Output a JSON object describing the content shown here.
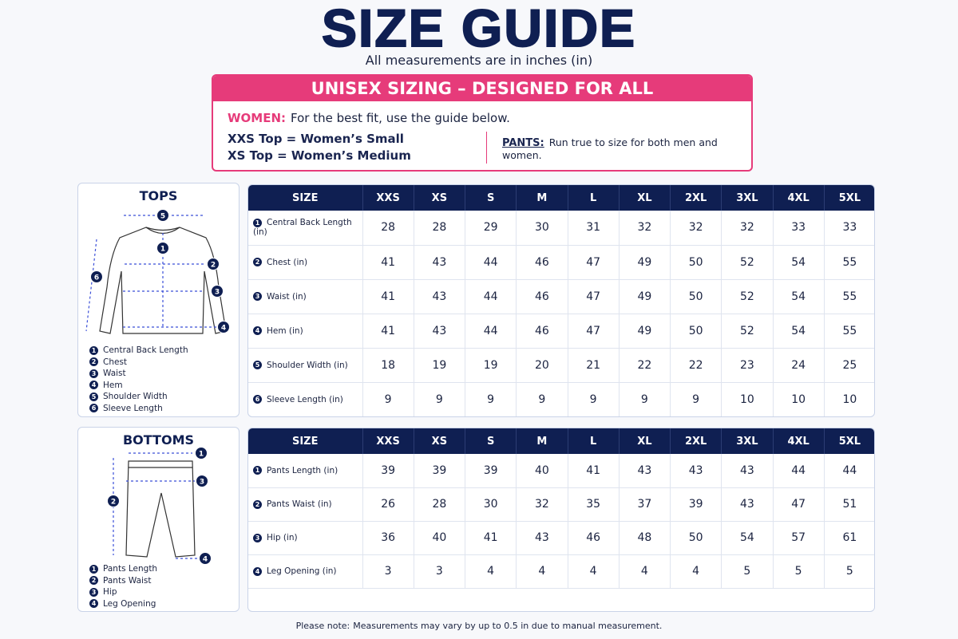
{
  "header": {
    "title": "SIZE GUIDE",
    "subtitle": "All measurements are in inches (in)"
  },
  "banner": {
    "title": "UNISEX SIZING – DESIGNED FOR ALL",
    "women_label": "WOMEN:",
    "women_text": "For the best fit, use the guide below.",
    "lines": [
      "XXS Top = Women’s Small",
      "XS Top = Women’s Medium"
    ],
    "pants_label": "PANTS:",
    "pants_text": "Run true to size for both men and women."
  },
  "tops": {
    "title": "TOPS",
    "legend": [
      {
        "num": "1",
        "label": "Central Back Length"
      },
      {
        "num": "2",
        "label": "Chest"
      },
      {
        "num": "3",
        "label": "Waist"
      },
      {
        "num": "4",
        "label": "Hem"
      },
      {
        "num": "5",
        "label": "Shoulder Width"
      },
      {
        "num": "6",
        "label": "Sleeve Length"
      }
    ],
    "table": {
      "header": [
        "SIZE",
        "XXS",
        "XS",
        "S",
        "M",
        "L",
        "XL",
        "2XL",
        "3XL",
        "4XL",
        "5XL"
      ],
      "rows": [
        {
          "num": "1",
          "label": "Central Back Length (in)",
          "values": [
            28,
            28,
            29,
            30,
            31,
            32,
            32,
            32,
            33,
            33
          ]
        },
        {
          "num": "2",
          "label": "Chest (in)",
          "values": [
            41,
            43,
            44,
            46,
            47,
            49,
            50,
            52,
            54,
            55
          ]
        },
        {
          "num": "3",
          "label": "Waist (in)",
          "values": [
            41,
            43,
            44,
            46,
            47,
            49,
            50,
            52,
            54,
            55
          ]
        },
        {
          "num": "4",
          "label": "Hem (in)",
          "values": [
            41,
            43,
            44,
            46,
            47,
            49,
            50,
            52,
            54,
            55
          ]
        },
        {
          "num": "5",
          "label": "Shoulder Width (in)",
          "values": [
            18,
            19,
            19,
            20,
            21,
            22,
            22,
            23,
            24,
            25
          ]
        },
        {
          "num": "6",
          "label": "Sleeve Length (in)",
          "values": [
            9,
            9,
            9,
            9,
            9,
            9,
            9,
            10,
            10,
            10
          ]
        }
      ]
    }
  },
  "bottoms": {
    "title": "BOTTOMS",
    "legend": [
      {
        "num": "1",
        "label": "Pants Length"
      },
      {
        "num": "2",
        "label": "Pants Waist"
      },
      {
        "num": "3",
        "label": "Hip"
      },
      {
        "num": "4",
        "label": "Leg Opening"
      }
    ],
    "table": {
      "header": [
        "SIZE",
        "XXS",
        "XS",
        "S",
        "M",
        "L",
        "XL",
        "2XL",
        "3XL",
        "4XL",
        "5XL"
      ],
      "rows": [
        {
          "num": "1",
          "label": "Pants Length (in)",
          "values": [
            39,
            39,
            39,
            40,
            41,
            43,
            43,
            43,
            44,
            44
          ]
        },
        {
          "num": "2",
          "label": "Pants Waist (in)",
          "values": [
            26,
            28,
            30,
            32,
            35,
            37,
            39,
            43,
            47,
            51
          ]
        },
        {
          "num": "3",
          "label": "Hip (in)",
          "values": [
            36,
            40,
            41,
            43,
            46,
            48,
            50,
            54,
            57,
            61
          ]
        },
        {
          "num": "4",
          "label": "Leg Opening (in)",
          "values": [
            3,
            3,
            4,
            4,
            4,
            4,
            4,
            5,
            5,
            5
          ]
        }
      ]
    }
  },
  "footer": {
    "label": "Please note:",
    "text": "Measurements may vary by up to 0.5 in due to manual measurement."
  }
}
